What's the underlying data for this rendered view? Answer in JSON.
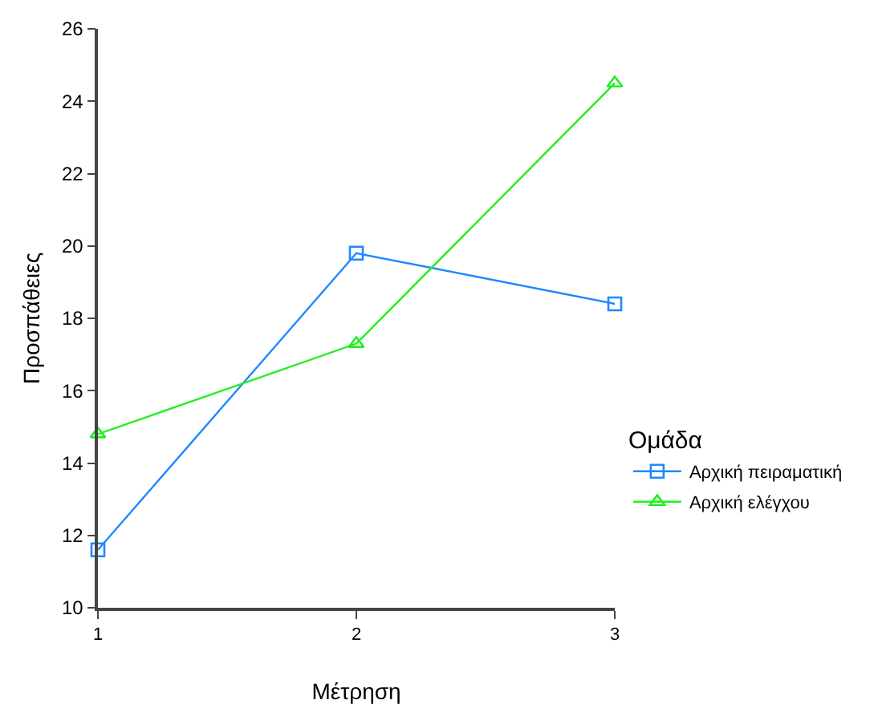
{
  "chart_data": {
    "type": "line",
    "xlabel": "Μέτρηση",
    "ylabel": "Προσπάθειες",
    "legend_title": "Ομάδα",
    "x": [
      1,
      2,
      3
    ],
    "xlim": [
      1,
      3
    ],
    "xticks": [
      1,
      2,
      3
    ],
    "ylim": [
      10,
      26
    ],
    "yticks": [
      10,
      12,
      14,
      16,
      18,
      20,
      22,
      24,
      26
    ],
    "grid": false,
    "legend": "bottom right",
    "series": [
      {
        "name": "Αρχική πειραματική",
        "color": "#1e88ff",
        "marker": "square",
        "values": [
          11.6,
          19.8,
          18.4
        ]
      },
      {
        "name": "Αρχική ελέγχου",
        "color": "#22ee22",
        "marker": "triangle",
        "values": [
          14.8,
          17.3,
          24.5
        ]
      }
    ]
  }
}
